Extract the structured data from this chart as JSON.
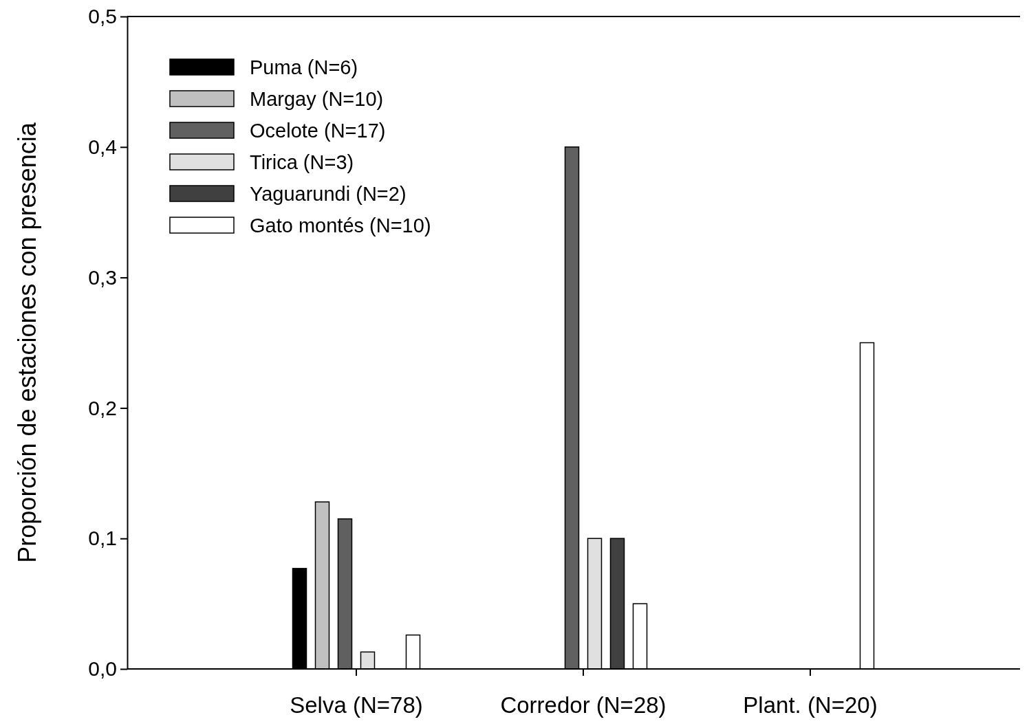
{
  "chart_data": {
    "type": "bar",
    "ylabel": "Proporción de estaciones con presencia",
    "categories": [
      "Selva (N=78)",
      "Corredor (N=28)",
      "Plant. (N=20)"
    ],
    "series": [
      {
        "name": "Puma (N=6)",
        "color": "#000000",
        "values": [
          0.077,
          0,
          0
        ]
      },
      {
        "name": "Margay (N=10)",
        "color": "#c0c0c0",
        "values": [
          0.128,
          0,
          0
        ]
      },
      {
        "name": "Ocelote (N=17)",
        "color": "#606060",
        "values": [
          0.115,
          0.4,
          0
        ]
      },
      {
        "name": "Tirica (N=3)",
        "color": "#e0e0e0",
        "values": [
          0.013,
          0.1,
          0
        ]
      },
      {
        "name": "Yaguarundi (N=2)",
        "color": "#404040",
        "values": [
          0,
          0.1,
          0
        ]
      },
      {
        "name": "Gato montés (N=10)",
        "color": "#ffffff",
        "values": [
          0.026,
          0.05,
          0.25
        ]
      }
    ],
    "ylim": [
      0,
      0.5
    ],
    "yticks": [
      {
        "value": 0,
        "label": "0,0"
      },
      {
        "value": 0.1,
        "label": "0,1"
      },
      {
        "value": 0.2,
        "label": "0,2"
      },
      {
        "value": 0.3,
        "label": "0,3"
      },
      {
        "value": 0.4,
        "label": "0,4"
      },
      {
        "value": 0.5,
        "label": "0,5"
      }
    ],
    "legend": "top left",
    "grid": false
  }
}
